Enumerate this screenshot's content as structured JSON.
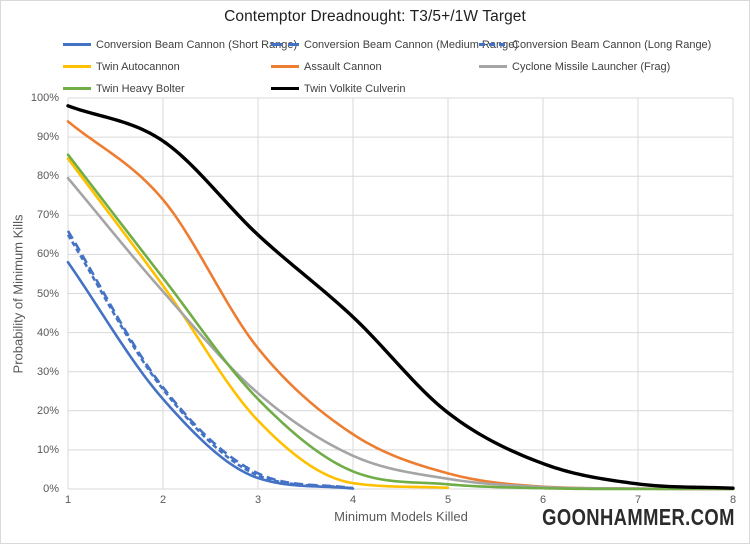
{
  "title": "Contemptor Dreadnought: T3/5+/1W Target",
  "watermark": "GOONHAMMER.COM",
  "colors": {
    "blue": "#4472C4",
    "yellow": "#FFC000",
    "orange": "#ED7D31",
    "gray": "#A5A5A5",
    "green": "#70AD47",
    "black": "#000000",
    "gridline": "#D9D9D9",
    "tick_text": "#595959",
    "legend_text": "#404040"
  },
  "chart_data": {
    "type": "line",
    "title": "Contemptor Dreadnought: T3/5+/1W Target",
    "xlabel": "Minimum Models Killed",
    "ylabel": "Probability of Minimum Kills",
    "x": [
      1,
      2,
      3,
      4,
      5,
      6,
      7,
      8
    ],
    "x_tick_labels": [
      "1",
      "2",
      "3",
      "4",
      "5",
      "6",
      "7",
      "8"
    ],
    "y_tick_labels": [
      "0%",
      "10%",
      "20%",
      "30%",
      "40%",
      "50%",
      "60%",
      "70%",
      "80%",
      "90%",
      "100%"
    ],
    "xlim": [
      1,
      8
    ],
    "ylim_percent": [
      0,
      100
    ],
    "grid": true,
    "legend_position": "top",
    "series": [
      {
        "name": "Conversion Beam Cannon (Short Range)",
        "color": "#4472C4",
        "dash": "solid",
        "width": 2.6,
        "values_percent": [
          58,
          23,
          2.8,
          0.1,
          null,
          null,
          null,
          null
        ]
      },
      {
        "name": "Conversion Beam Cannon (Medium Range)",
        "color": "#4472C4",
        "dash": "long-dash",
        "width": 2.6,
        "values_percent": [
          66,
          26,
          4,
          0.2,
          null,
          null,
          null,
          null
        ]
      },
      {
        "name": "Conversion Beam Cannon (Long Range)",
        "color": "#4472C4",
        "dash": "short-dash",
        "width": 2.6,
        "values_percent": [
          65,
          25.5,
          3.5,
          0.15,
          null,
          null,
          null,
          null
        ]
      },
      {
        "name": "Twin Autocannon",
        "color": "#FFC000",
        "dash": "solid",
        "width": 2.6,
        "values_percent": [
          84.5,
          52,
          17.5,
          1.5,
          0.3,
          null,
          null,
          null
        ]
      },
      {
        "name": "Assault Cannon",
        "color": "#ED7D31",
        "dash": "solid",
        "width": 2.6,
        "values_percent": [
          94,
          74,
          36,
          14,
          4,
          0.6,
          0.1,
          0
        ]
      },
      {
        "name": "Cyclone Missile Launcher (Frag)",
        "color": "#A5A5A5",
        "dash": "solid",
        "width": 2.6,
        "values_percent": [
          79.5,
          50.5,
          24.5,
          8.5,
          2.6,
          0.5,
          0.1,
          0
        ]
      },
      {
        "name": "Twin Heavy Bolter",
        "color": "#70AD47",
        "dash": "solid",
        "width": 2.6,
        "values_percent": [
          85.5,
          54,
          23,
          4.5,
          1.2,
          0.2,
          0,
          0
        ]
      },
      {
        "name": "Twin Volkite Culverin",
        "color": "#000000",
        "dash": "solid",
        "width": 3.4,
        "values_percent": [
          98,
          89,
          65,
          44,
          19.5,
          6.5,
          1.3,
          0.2
        ]
      }
    ]
  }
}
